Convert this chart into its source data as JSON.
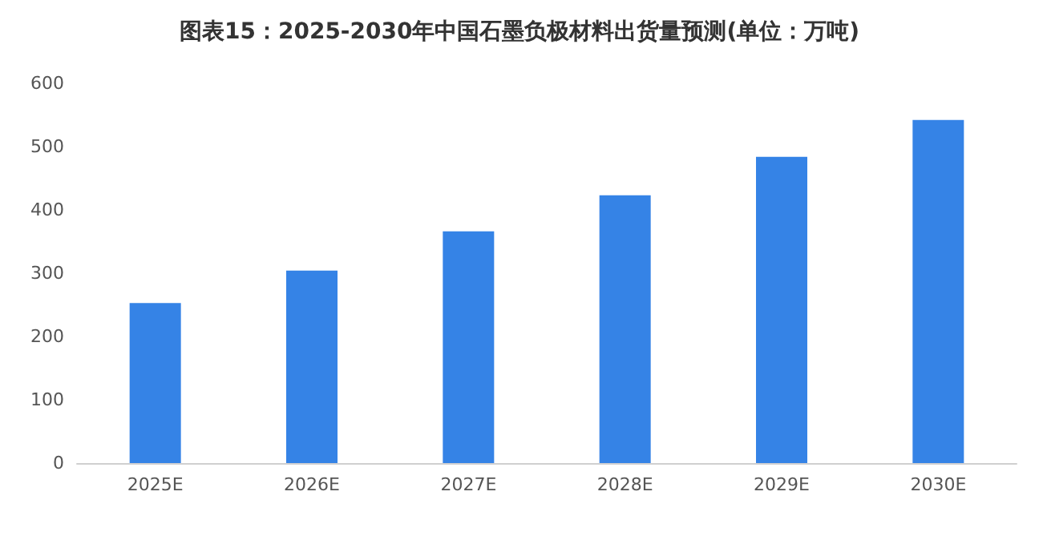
{
  "chart_data": {
    "type": "bar",
    "title": "图表15：2025-2030年中国石墨负极材料出货量预测(单位：万吨)",
    "categories": [
      "2025E",
      "2026E",
      "2027E",
      "2028E",
      "2029E",
      "2030E"
    ],
    "values": [
      253,
      304,
      366,
      423,
      484,
      542
    ],
    "color": "#3583e6",
    "ylim": [
      0,
      600
    ],
    "yticks": [
      0,
      100,
      200,
      300,
      400,
      500,
      600
    ],
    "grid": false
  }
}
